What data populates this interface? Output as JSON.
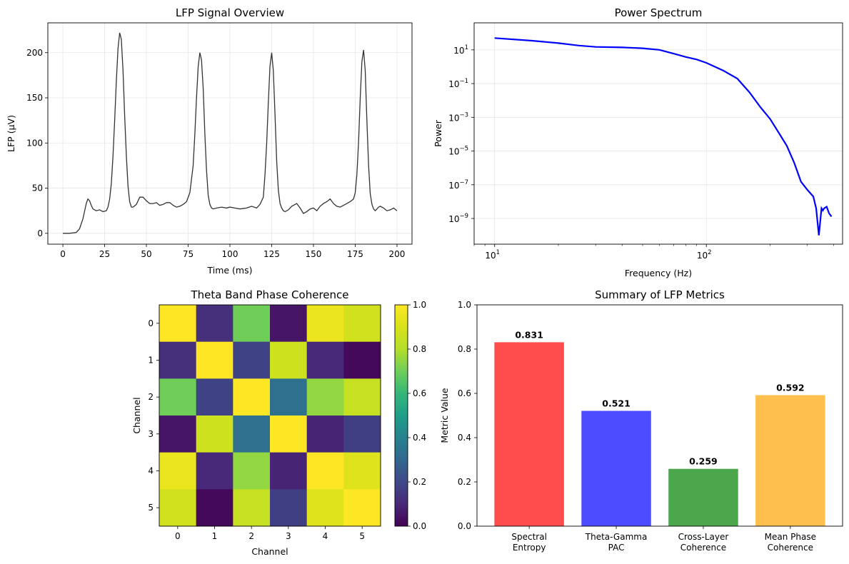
{
  "chart_data": [
    {
      "type": "line",
      "title": "LFP Signal Overview",
      "xlabel": "Time (ms)",
      "ylabel": "LFP (µV)",
      "xlim": [
        -9,
        209
      ],
      "ylim": [
        -12,
        233
      ],
      "xticks": [
        0,
        25,
        50,
        75,
        100,
        125,
        150,
        175,
        200
      ],
      "yticks": [
        0,
        50,
        100,
        150,
        200
      ],
      "grid": true,
      "color": "#333333",
      "series": [
        {
          "x": [
            0,
            4,
            8,
            10,
            12,
            14,
            15,
            16,
            17,
            18,
            20,
            22,
            24,
            26,
            27,
            28,
            29,
            30,
            31,
            32,
            33,
            34,
            35,
            36,
            37,
            38,
            39,
            40,
            41,
            42,
            44,
            46,
            48,
            50,
            52,
            54,
            56,
            58,
            60,
            62,
            64,
            66,
            68,
            70,
            72,
            74,
            76,
            78,
            79,
            80,
            81,
            82,
            83,
            84,
            85,
            86,
            87,
            88,
            89,
            90,
            92,
            95,
            98,
            100,
            103,
            106,
            110,
            113,
            116,
            118,
            120,
            121,
            122,
            123,
            124,
            125,
            126,
            127,
            128,
            129,
            130,
            131,
            132,
            133,
            135,
            137,
            140,
            142,
            144,
            146,
            148,
            150,
            152,
            154,
            156,
            158,
            160,
            162,
            164,
            166,
            168,
            170,
            172,
            174,
            175,
            176,
            177,
            178,
            179,
            180,
            181,
            182,
            183,
            184,
            185,
            186,
            187,
            188,
            189,
            190,
            192,
            194,
            196,
            198,
            200
          ],
          "y": [
            0,
            0,
            1,
            5,
            16,
            33,
            38,
            36,
            31,
            27,
            25,
            26,
            24,
            25,
            29,
            38,
            55,
            85,
            125,
            168,
            205,
            222,
            215,
            180,
            130,
            85,
            52,
            35,
            29,
            29,
            32,
            40,
            40,
            36,
            33,
            33,
            34,
            31,
            32,
            34,
            34,
            31,
            29,
            30,
            32,
            35,
            45,
            75,
            110,
            150,
            185,
            200,
            192,
            160,
            110,
            70,
            42,
            32,
            28,
            27,
            28,
            29,
            28,
            29,
            28,
            27,
            28,
            30,
            28,
            32,
            40,
            65,
            100,
            145,
            185,
            200,
            180,
            130,
            80,
            48,
            33,
            28,
            25,
            24,
            26,
            30,
            33,
            28,
            22,
            24,
            27,
            28,
            25,
            30,
            33,
            35,
            38,
            33,
            30,
            29,
            31,
            33,
            35,
            38,
            45,
            65,
            100,
            150,
            190,
            203,
            180,
            125,
            75,
            44,
            32,
            27,
            25,
            27,
            29,
            30,
            28,
            25,
            26,
            28,
            25
          ]
        }
      ]
    },
    {
      "type": "line",
      "title": "Power Spectrum",
      "xlabel": "Frequency (Hz)",
      "ylabel": "Power",
      "xscale": "log",
      "yscale": "log",
      "xlim": [
        8,
        440
      ],
      "ylim": [
        3e-11,
        400
      ],
      "xticks": [
        10,
        100
      ],
      "yticks": [
        1e-09,
        1e-07,
        1e-05,
        0.001,
        0.1,
        10
      ],
      "grid": true,
      "color": "#0000ff",
      "series": [
        {
          "x": [
            10,
            15,
            20,
            25,
            30,
            40,
            50,
            60,
            70,
            80,
            90,
            100,
            120,
            140,
            160,
            180,
            200,
            220,
            240,
            260,
            280,
            300,
            320,
            330,
            340,
            350,
            355,
            360,
            370,
            380,
            390
          ],
          "y": [
            50,
            35,
            25,
            18,
            15,
            14,
            12.5,
            10,
            6,
            3.8,
            2.7,
            1.7,
            0.6,
            0.2,
            0.03,
            0.004,
            0.0008,
            0.00012,
            2e-05,
            2e-06,
            1.5e-07,
            5e-08,
            2e-08,
            4e-09,
            1e-10,
            4e-09,
            3e-09,
            4e-09,
            5e-09,
            2e-09,
            1.3e-09
          ]
        }
      ]
    },
    {
      "type": "heatmap",
      "title": "Theta Band Phase Coherence",
      "xlabel": "Channel",
      "ylabel": "Channel",
      "xticks": [
        0,
        1,
        2,
        3,
        4,
        5
      ],
      "yticks": [
        0,
        1,
        2,
        3,
        4,
        5
      ],
      "colorbar": {
        "range": [
          0,
          1
        ],
        "ticks": [
          "0.0",
          "0.2",
          "0.4",
          "0.6",
          "0.8",
          "1.0"
        ],
        "colormap": "viridis"
      },
      "values": [
        [
          1.0,
          0.12,
          0.7,
          0.05,
          0.95,
          0.88
        ],
        [
          0.12,
          1.0,
          0.18,
          0.87,
          0.1,
          0.02
        ],
        [
          0.7,
          0.18,
          1.0,
          0.33,
          0.75,
          0.85
        ],
        [
          0.05,
          0.87,
          0.33,
          1.0,
          0.09,
          0.17
        ],
        [
          0.95,
          0.1,
          0.75,
          0.09,
          1.0,
          0.92
        ],
        [
          0.88,
          0.02,
          0.85,
          0.17,
          0.92,
          1.0
        ]
      ]
    },
    {
      "type": "bar",
      "title": "Summary of LFP Metrics",
      "xlabel": "",
      "ylabel": "Metric Value",
      "ylim": [
        0,
        1.0
      ],
      "yticks": [
        "0.0",
        "0.2",
        "0.4",
        "0.6",
        "0.8",
        "1.0"
      ],
      "categories": [
        [
          "Spectral",
          "Entropy"
        ],
        [
          "Theta-Gamma",
          "PAC"
        ],
        [
          "Cross-Layer",
          "Coherence"
        ],
        [
          "Mean Phase",
          "Coherence"
        ]
      ],
      "values": [
        0.831,
        0.521,
        0.259,
        0.592
      ],
      "labels": [
        "0.831",
        "0.521",
        "0.259",
        "0.592"
      ],
      "colors": [
        "#ff4d4d",
        "#4d4dff",
        "#4ca64c",
        "#ffbf4d"
      ]
    }
  ]
}
